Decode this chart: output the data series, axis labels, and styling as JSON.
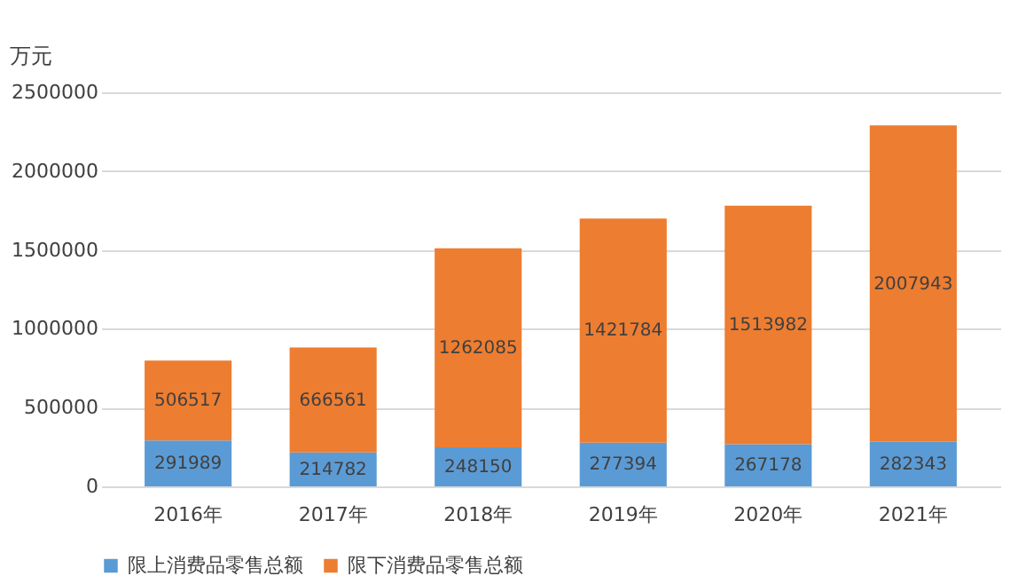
{
  "chart_data": {
    "type": "bar",
    "stacked": true,
    "ylabel": "万元",
    "categories": [
      "2016年",
      "2017年",
      "2018年",
      "2019年",
      "2020年",
      "2021年"
    ],
    "series": [
      {
        "name": "限上消费品零售总额",
        "color": "#5b9bd5",
        "values": [
          291989,
          214782,
          248150,
          277394,
          267178,
          282343
        ]
      },
      {
        "name": "限下消费品零售总额",
        "color": "#ed7d31",
        "values": [
          506517,
          666561,
          1262085,
          1421784,
          1513982,
          2007943
        ]
      }
    ],
    "ylim": [
      0,
      2500000
    ],
    "yticks": [
      0,
      500000,
      1000000,
      1500000,
      2000000,
      2500000
    ],
    "grid": "y",
    "legend": "bottom",
    "data_labels": true
  }
}
